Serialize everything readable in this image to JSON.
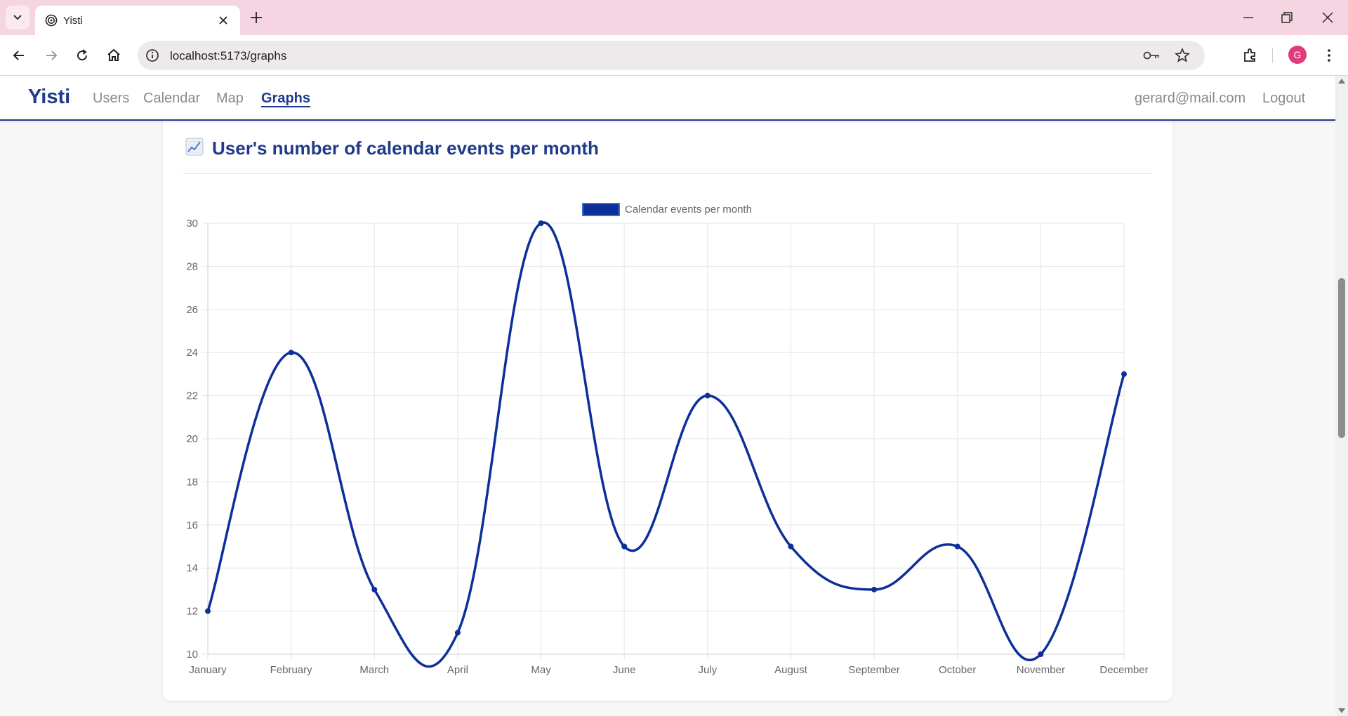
{
  "browser": {
    "tab_title": "Yisti",
    "url": "localhost:5173/graphs",
    "profile_initial": "G"
  },
  "app": {
    "brand": "Yisti",
    "nav": [
      "Users",
      "Calendar",
      "Map",
      "Graphs"
    ],
    "active_nav": "Graphs",
    "user_email": "gerard@mail.com",
    "logout_label": "Logout"
  },
  "card": {
    "emoji": "chart-increasing-icon",
    "title": "User's number of calendar events per month"
  },
  "colors": {
    "accent": "#1f3a8a",
    "line": "#0d2f99",
    "tab_strip": "#f6d5e3"
  },
  "chart_data": {
    "type": "line",
    "categories": [
      "January",
      "February",
      "March",
      "April",
      "May",
      "June",
      "July",
      "August",
      "September",
      "October",
      "November",
      "December"
    ],
    "series": [
      {
        "name": "Calendar events per month",
        "values": [
          12,
          24,
          13,
          11,
          30,
          15,
          22,
          15,
          13,
          15,
          10,
          23
        ]
      }
    ],
    "ylim": [
      10,
      30
    ],
    "yticks": [
      10,
      12,
      14,
      16,
      18,
      20,
      22,
      24,
      26,
      28,
      30
    ],
    "smooth": true,
    "grid": true,
    "legend": "top-center"
  }
}
